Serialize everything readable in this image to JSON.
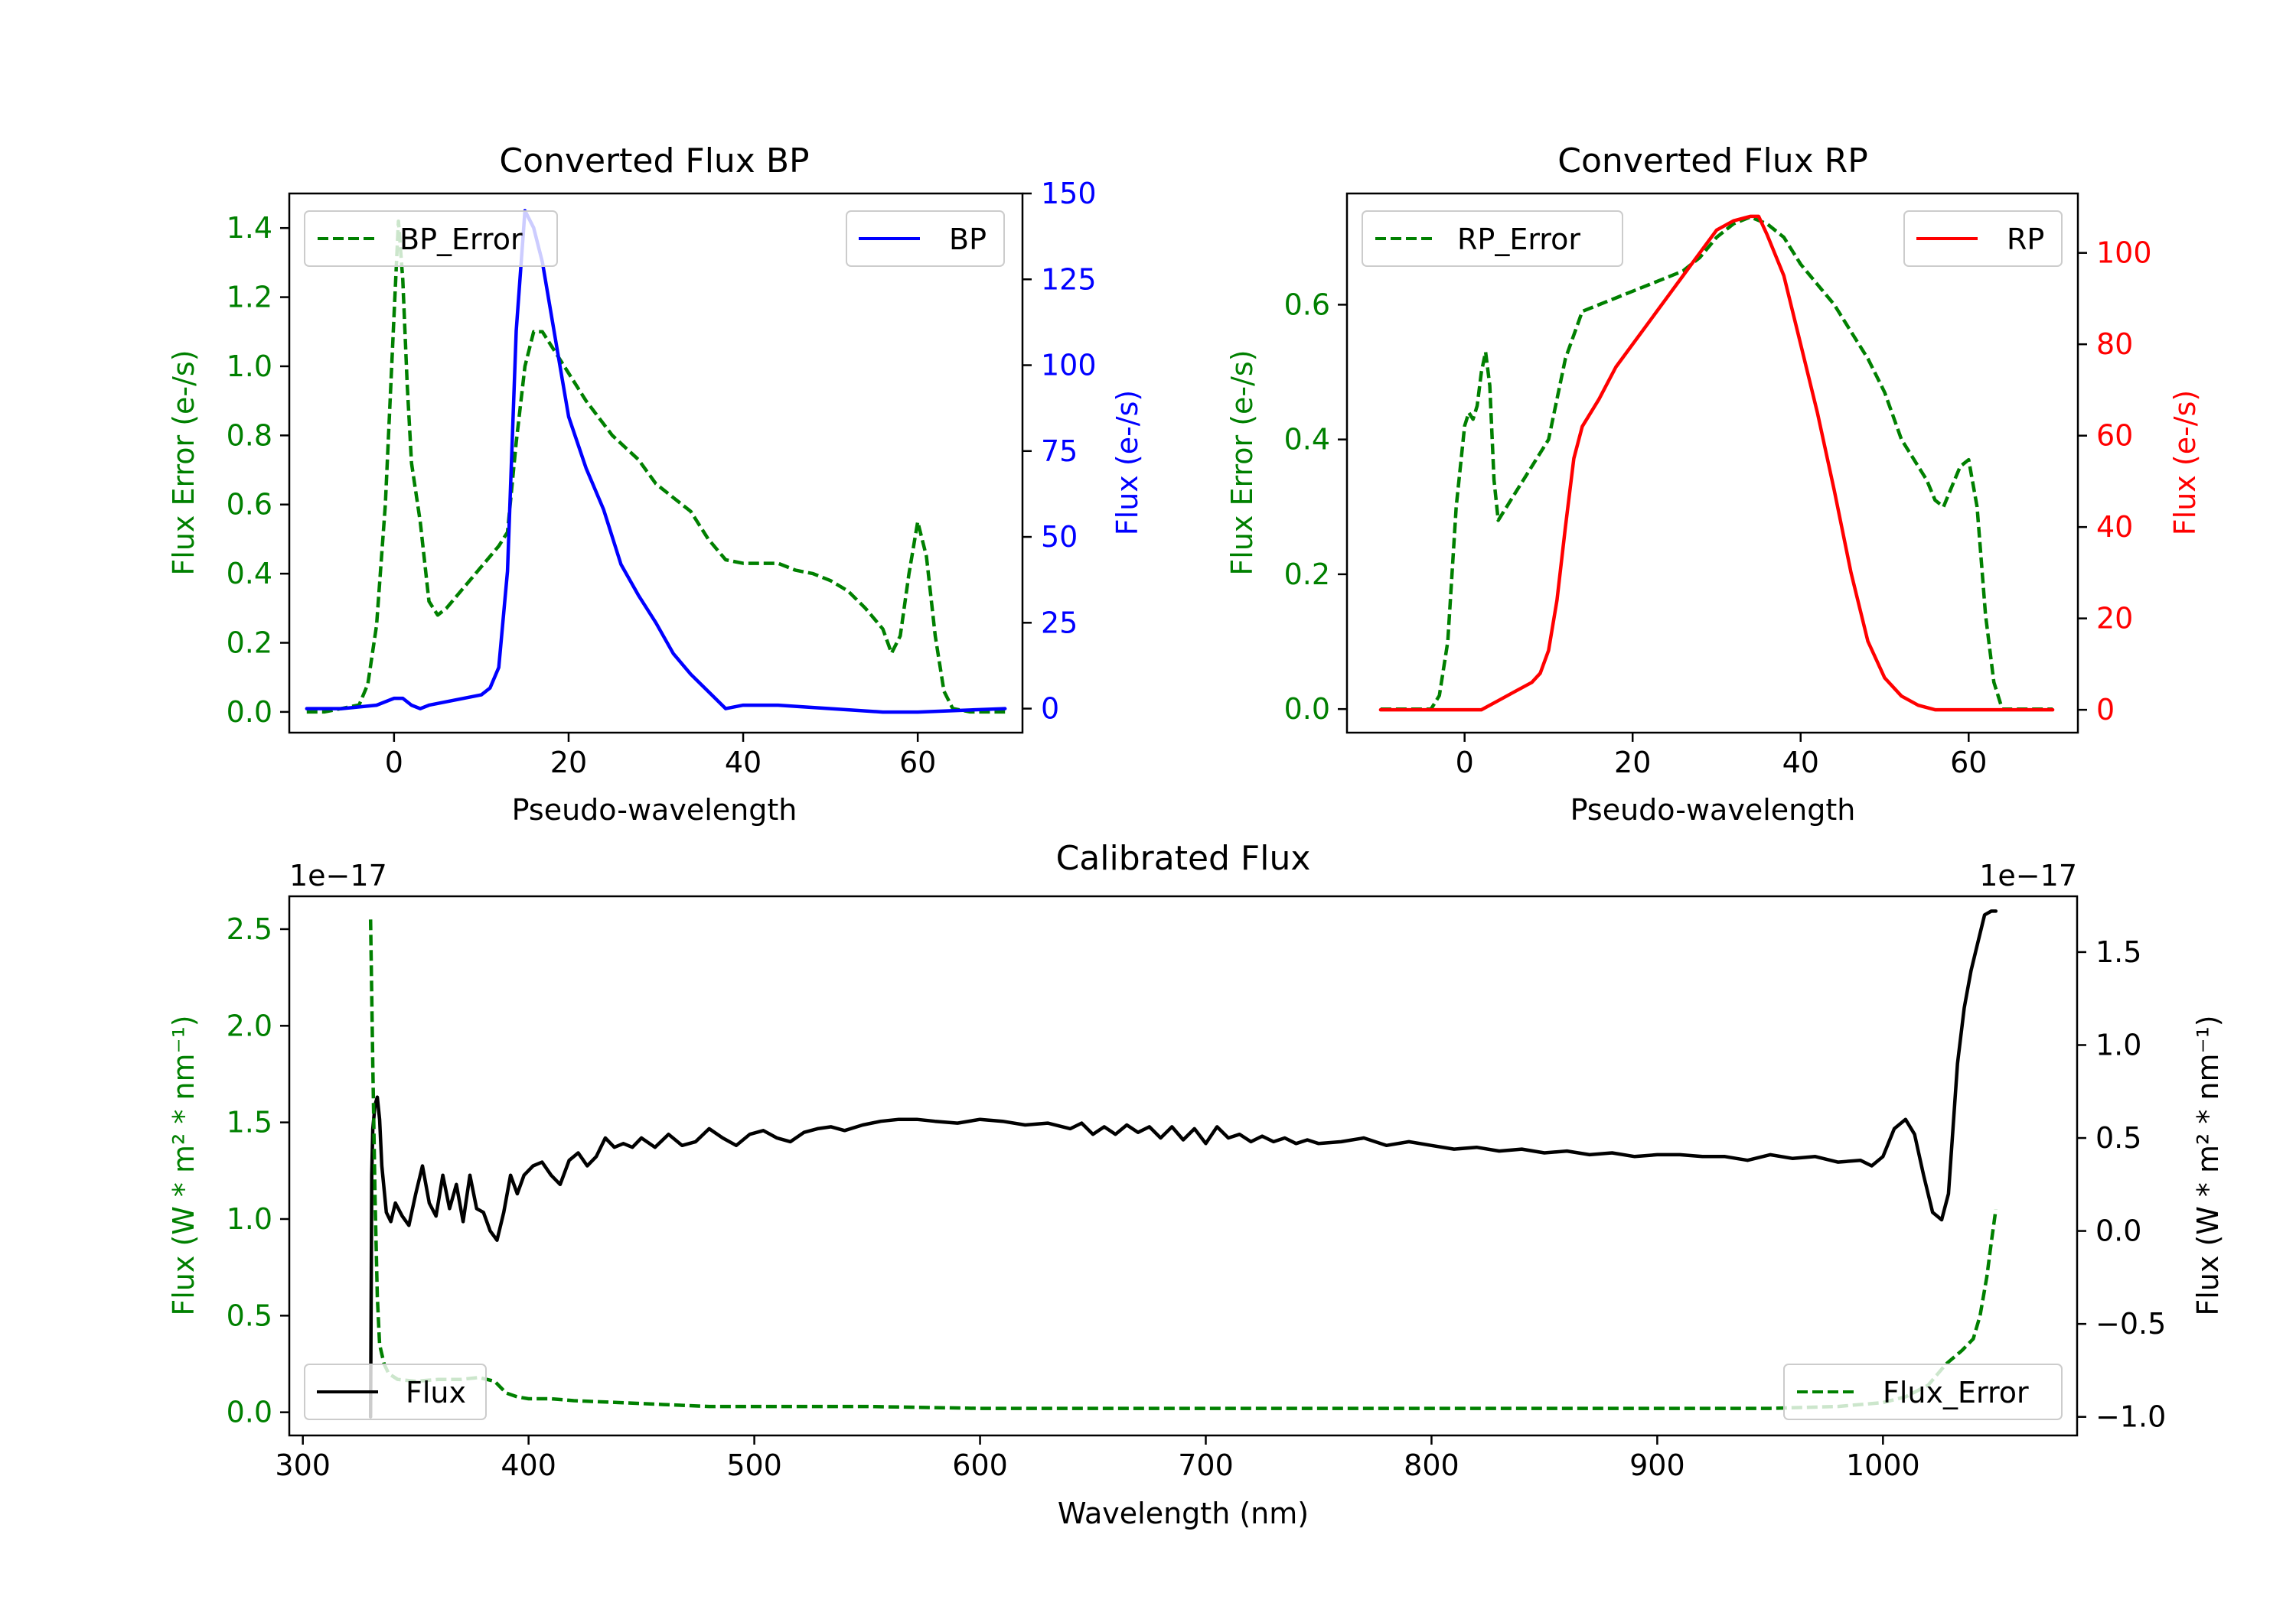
{
  "chart_data": [
    {
      "id": "bp",
      "type": "line",
      "title": "Converted Flux BP",
      "xlabel": "Pseudo-wavelength",
      "ylabel_left": "Flux Error (e-/s)",
      "ylabel_right": "Flux (e-/s)",
      "xlim": [
        -12,
        72
      ],
      "ylim_left": [
        -0.06,
        1.5
      ],
      "ylim_right": [
        -7,
        150
      ],
      "xticks": [
        0,
        20,
        40,
        60
      ],
      "yticks_left": [
        0.0,
        0.2,
        0.4,
        0.6,
        0.8,
        1.0,
        1.2,
        1.4
      ],
      "yticks_right": [
        0,
        25,
        50,
        75,
        100,
        125,
        150
      ],
      "legend": [
        {
          "label": "BP_Error",
          "position": "top-left"
        },
        {
          "label": "BP",
          "position": "top-right"
        }
      ],
      "series": [
        {
          "name": "BP_Error",
          "axis": "left",
          "color": "#008000",
          "style": "dashed",
          "x": [
            -10,
            -8,
            -6,
            -4,
            -3,
            -2,
            -1,
            0,
            0.5,
            1,
            1.5,
            2,
            3,
            4,
            5,
            6,
            8,
            10,
            12,
            13,
            14,
            15,
            16,
            17,
            18,
            20,
            22,
            25,
            28,
            30,
            32,
            34,
            36,
            38,
            40,
            42,
            44,
            46,
            48,
            50,
            52,
            54,
            56,
            57,
            58,
            59,
            60,
            61,
            62,
            63,
            64,
            66,
            68,
            70
          ],
          "y": [
            0.0,
            0.0,
            0.01,
            0.02,
            0.08,
            0.25,
            0.6,
            1.15,
            1.42,
            1.25,
            0.95,
            0.72,
            0.55,
            0.32,
            0.28,
            0.3,
            0.36,
            0.42,
            0.48,
            0.52,
            0.78,
            1.0,
            1.1,
            1.1,
            1.06,
            0.98,
            0.9,
            0.8,
            0.73,
            0.66,
            0.62,
            0.58,
            0.5,
            0.44,
            0.43,
            0.43,
            0.43,
            0.41,
            0.4,
            0.38,
            0.35,
            0.3,
            0.24,
            0.17,
            0.22,
            0.4,
            0.55,
            0.45,
            0.22,
            0.06,
            0.01,
            0.0,
            0.0,
            0.0
          ]
        },
        {
          "name": "BP",
          "axis": "right",
          "color": "#0000ff",
          "style": "solid",
          "x": [
            -10,
            -6,
            -2,
            0,
            1,
            2,
            3,
            4,
            6,
            8,
            10,
            11,
            12,
            13,
            14,
            15,
            16,
            17,
            18,
            19,
            20,
            22,
            24,
            26,
            28,
            30,
            32,
            34,
            36,
            38,
            40,
            44,
            50,
            56,
            60,
            70
          ],
          "y": [
            0,
            0,
            1,
            3,
            3,
            1,
            0,
            1,
            2,
            3,
            4,
            6,
            12,
            40,
            110,
            145,
            140,
            130,
            115,
            100,
            85,
            70,
            58,
            42,
            33,
            25,
            16,
            10,
            5,
            0,
            1,
            1,
            0,
            -1,
            -1,
            0
          ]
        }
      ]
    },
    {
      "id": "rp",
      "type": "line",
      "title": "Converted Flux RP",
      "xlabel": "Pseudo-wavelength",
      "ylabel_left": "Flux Error (e-/s)",
      "ylabel_right": "Flux (e-/s)",
      "xlim": [
        -14,
        73
      ],
      "ylim_left": [
        -0.035,
        0.765
      ],
      "ylim_right": [
        -5,
        113
      ],
      "xticks": [
        0,
        20,
        40,
        60
      ],
      "yticks_left": [
        0.0,
        0.2,
        0.4,
        0.6
      ],
      "yticks_right": [
        0,
        20,
        40,
        60,
        80,
        100
      ],
      "legend": [
        {
          "label": "RP_Error",
          "position": "top-left"
        },
        {
          "label": "RP",
          "position": "top-right"
        }
      ],
      "series": [
        {
          "name": "RP_Error",
          "axis": "left",
          "color": "#008000",
          "style": "dashed",
          "x": [
            -10,
            -6,
            -4,
            -3,
            -2,
            -1,
            0,
            0.5,
            1,
            1.5,
            2,
            2.5,
            3,
            3.5,
            4,
            5,
            6,
            8,
            10,
            12,
            14,
            16,
            18,
            20,
            22,
            24,
            26,
            28,
            30,
            32,
            34,
            36,
            38,
            40,
            42,
            44,
            46,
            48,
            50,
            52,
            54,
            55,
            56,
            57,
            58,
            59,
            60,
            61,
            62,
            63,
            64,
            66,
            70
          ],
          "y": [
            0.0,
            0.0,
            0.0,
            0.02,
            0.1,
            0.3,
            0.42,
            0.44,
            0.43,
            0.45,
            0.5,
            0.53,
            0.48,
            0.34,
            0.28,
            0.3,
            0.32,
            0.36,
            0.4,
            0.52,
            0.59,
            0.6,
            0.61,
            0.62,
            0.63,
            0.64,
            0.65,
            0.67,
            0.7,
            0.72,
            0.73,
            0.72,
            0.7,
            0.66,
            0.63,
            0.6,
            0.56,
            0.52,
            0.47,
            0.4,
            0.36,
            0.34,
            0.31,
            0.3,
            0.33,
            0.36,
            0.37,
            0.3,
            0.14,
            0.04,
            0.0,
            0.0,
            0.0
          ]
        },
        {
          "name": "RP",
          "axis": "right",
          "color": "#ff0000",
          "style": "solid",
          "x": [
            -10,
            -5,
            0,
            2,
            4,
            6,
            8,
            9,
            10,
            11,
            12,
            13,
            14,
            16,
            18,
            20,
            22,
            24,
            26,
            28,
            30,
            32,
            34,
            35,
            36,
            38,
            40,
            42,
            44,
            46,
            48,
            50,
            52,
            54,
            56,
            58,
            60,
            62,
            66,
            70
          ],
          "y": [
            0,
            0,
            0,
            0,
            2,
            4,
            6,
            8,
            13,
            24,
            40,
            55,
            62,
            68,
            75,
            80,
            85,
            90,
            95,
            100,
            105,
            107,
            108,
            108,
            104,
            95,
            80,
            65,
            48,
            30,
            15,
            7,
            3,
            1,
            0,
            0,
            0,
            0,
            0,
            0
          ]
        }
      ]
    },
    {
      "id": "calibrated",
      "type": "line",
      "title": "Calibrated Flux",
      "xlabel": "Wavelength (nm)",
      "ylabel_left": "Flux (W * m² * nm⁻¹)",
      "ylabel_right": "Flux (W * m² * nm⁻¹)",
      "offset_left": "1e−17",
      "offset_right": "1e−17",
      "xlim": [
        294,
        1086
      ],
      "ylim_left": [
        -0.12,
        2.67
      ],
      "ylim_right": [
        -1.1,
        1.8
      ],
      "xticks": [
        300,
        400,
        500,
        600,
        700,
        800,
        900,
        1000
      ],
      "yticks_left": [
        0.0,
        0.5,
        1.0,
        1.5,
        2.0,
        2.5
      ],
      "yticks_right": [
        -1.0,
        -0.5,
        0.0,
        0.5,
        1.0,
        1.5
      ],
      "ytick_labels_left": [
        "0.0",
        "0.5",
        "1.0",
        "1.5",
        "2.0",
        "2.5"
      ],
      "ytick_labels_right": [
        "−1.0",
        "−0.5",
        "0.0",
        "0.5",
        "1.0",
        "1.5"
      ],
      "legend": [
        {
          "label": "Flux",
          "position": "bottom-left"
        },
        {
          "label": "Flux_Error",
          "position": "bottom-right"
        }
      ],
      "series": [
        {
          "name": "Flux",
          "axis": "right",
          "color": "#000000",
          "style": "solid",
          "x": [
            330,
            330.5,
            331,
            332,
            333,
            334,
            335,
            337,
            339,
            341,
            344,
            347,
            350,
            353,
            356,
            359,
            362,
            365,
            368,
            371,
            374,
            377,
            380,
            383,
            386,
            389,
            392,
            395,
            398,
            402,
            406,
            410,
            414,
            418,
            422,
            426,
            430,
            434,
            438,
            442,
            446,
            450,
            456,
            462,
            468,
            474,
            480,
            486,
            492,
            498,
            504,
            510,
            516,
            522,
            528,
            534,
            540,
            548,
            556,
            564,
            572,
            580,
            590,
            600,
            610,
            620,
            630,
            640,
            645,
            650,
            655,
            660,
            665,
            670,
            675,
            680,
            685,
            690,
            695,
            700,
            705,
            710,
            715,
            720,
            725,
            730,
            735,
            740,
            745,
            750,
            760,
            770,
            780,
            790,
            800,
            810,
            820,
            830,
            840,
            850,
            860,
            870,
            880,
            890,
            900,
            910,
            920,
            930,
            940,
            950,
            960,
            970,
            980,
            990,
            995,
            1000,
            1005,
            1010,
            1014,
            1018,
            1022,
            1026,
            1029,
            1031,
            1033,
            1036,
            1039,
            1042,
            1045,
            1048,
            1050
          ],
          "y": [
            -1.0,
            0.3,
            0.55,
            0.68,
            0.72,
            0.6,
            0.35,
            0.1,
            0.05,
            0.15,
            0.08,
            0.03,
            0.2,
            0.35,
            0.15,
            0.08,
            0.3,
            0.12,
            0.25,
            0.05,
            0.3,
            0.12,
            0.1,
            0.0,
            -0.05,
            0.1,
            0.3,
            0.2,
            0.3,
            0.35,
            0.37,
            0.3,
            0.25,
            0.38,
            0.42,
            0.35,
            0.4,
            0.5,
            0.45,
            0.47,
            0.45,
            0.5,
            0.45,
            0.52,
            0.46,
            0.48,
            0.55,
            0.5,
            0.46,
            0.52,
            0.54,
            0.5,
            0.48,
            0.53,
            0.55,
            0.56,
            0.54,
            0.57,
            0.59,
            0.6,
            0.6,
            0.59,
            0.58,
            0.6,
            0.59,
            0.57,
            0.58,
            0.55,
            0.58,
            0.52,
            0.56,
            0.52,
            0.57,
            0.53,
            0.56,
            0.5,
            0.56,
            0.49,
            0.55,
            0.47,
            0.56,
            0.5,
            0.52,
            0.48,
            0.51,
            0.48,
            0.5,
            0.47,
            0.49,
            0.47,
            0.48,
            0.5,
            0.46,
            0.48,
            0.46,
            0.44,
            0.45,
            0.43,
            0.44,
            0.42,
            0.43,
            0.41,
            0.42,
            0.4,
            0.41,
            0.41,
            0.4,
            0.4,
            0.38,
            0.41,
            0.39,
            0.4,
            0.37,
            0.38,
            0.35,
            0.4,
            0.55,
            0.6,
            0.52,
            0.3,
            0.1,
            0.06,
            0.2,
            0.55,
            0.9,
            1.2,
            1.4,
            1.55,
            1.7,
            1.72,
            1.72
          ]
        },
        {
          "name": "Flux_Error",
          "axis": "left",
          "color": "#008000",
          "style": "dashed",
          "x": [
            330,
            331,
            332,
            333,
            334,
            336,
            338,
            342,
            350,
            360,
            370,
            378,
            385,
            390,
            395,
            400,
            410,
            420,
            440,
            460,
            480,
            500,
            550,
            600,
            650,
            700,
            750,
            800,
            850,
            900,
            950,
            980,
            1000,
            1010,
            1020,
            1028,
            1035,
            1040,
            1043,
            1046,
            1048,
            1050
          ],
          "y": [
            2.55,
            1.8,
            1.1,
            0.6,
            0.35,
            0.25,
            0.2,
            0.17,
            0.16,
            0.17,
            0.17,
            0.18,
            0.16,
            0.1,
            0.08,
            0.07,
            0.07,
            0.06,
            0.05,
            0.04,
            0.03,
            0.03,
            0.03,
            0.02,
            0.02,
            0.02,
            0.02,
            0.02,
            0.02,
            0.02,
            0.02,
            0.03,
            0.05,
            0.08,
            0.14,
            0.25,
            0.32,
            0.38,
            0.5,
            0.7,
            0.88,
            1.05
          ]
        }
      ]
    }
  ]
}
